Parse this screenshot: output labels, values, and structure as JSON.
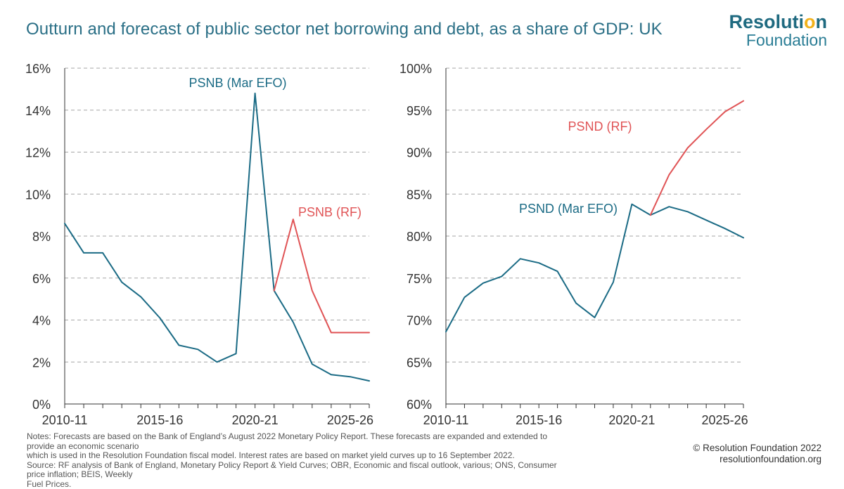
{
  "header": {
    "title": "Outturn and forecast of public sector net borrowing and debt, as a share of GDP: UK"
  },
  "logo": {
    "line1_prefix": "Resoluti",
    "line1_accent": "o",
    "line1_suffix": "n",
    "line2": "Foundation",
    "accent_color": "#f2b21c"
  },
  "footer": {
    "notes_line1": "Notes: Forecasts are based on the Bank of England’s August 2022 Monetary Policy Report. These forecasts are expanded and extended to provide an economic scenario",
    "notes_line2": "which is used in the Resolution Foundation fiscal model. Interest rates are based on market yield curves up to 16 September 2022.",
    "source_line1": "Source: RF analysis of Bank of England, Monetary Policy Report & Yield Curves; OBR, Economic and fiscal outlook, various; ONS, Consumer price inflation; BEIS, Weekly",
    "source_line2": "Fuel Prices.",
    "copyright": "© Resolution Foundation 2022",
    "website": "resolutionfoundation.org"
  },
  "colors": {
    "mar_efo": "#1b6b85",
    "rf": "#e05456",
    "grid": "#a6a6a6",
    "axis": "#333333"
  },
  "chart_data": [
    {
      "type": "line",
      "x": [
        "2010-11",
        "2011-12",
        "2012-13",
        "2013-14",
        "2014-15",
        "2015-16",
        "2016-17",
        "2017-18",
        "2018-19",
        "2019-20",
        "2020-21",
        "2021-22",
        "2022-23",
        "2023-24",
        "2024-25",
        "2025-26",
        "2026-27"
      ],
      "x_tick_labels": [
        "2010-11",
        "2015-16",
        "2020-21",
        "2025-26"
      ],
      "y_tick_labels": [
        "0%",
        "2%",
        "4%",
        "6%",
        "8%",
        "10%",
        "12%",
        "14%",
        "16%"
      ],
      "ylim": [
        0,
        16
      ],
      "y_step": 2,
      "grid": true,
      "series": [
        {
          "name": "PSNB (Mar EFO)",
          "color": "#1b6b85",
          "values": [
            8.6,
            7.2,
            7.2,
            5.8,
            5.1,
            4.1,
            2.8,
            2.6,
            2.0,
            2.4,
            14.8,
            5.4,
            3.9,
            1.9,
            1.4,
            1.3,
            1.1
          ]
        },
        {
          "name": "PSNB (RF)",
          "color": "#e05456",
          "values": [
            null,
            null,
            null,
            null,
            null,
            null,
            null,
            null,
            null,
            null,
            null,
            5.4,
            8.8,
            5.4,
            3.4,
            3.4,
            3.4
          ]
        }
      ]
    },
    {
      "type": "line",
      "x": [
        "2010-11",
        "2011-12",
        "2012-13",
        "2013-14",
        "2014-15",
        "2015-16",
        "2016-17",
        "2017-18",
        "2018-19",
        "2019-20",
        "2020-21",
        "2021-22",
        "2022-23",
        "2023-24",
        "2024-25",
        "2025-26",
        "2026-27"
      ],
      "x_tick_labels": [
        "2010-11",
        "2015-16",
        "2020-21",
        "2025-26"
      ],
      "y_tick_labels": [
        "60%",
        "65%",
        "70%",
        "75%",
        "80%",
        "85%",
        "90%",
        "95%",
        "100%"
      ],
      "ylim": [
        60,
        100
      ],
      "y_step": 5,
      "grid": true,
      "series": [
        {
          "name": "PSND (Mar EFO)",
          "color": "#1b6b85",
          "values": [
            68.6,
            72.7,
            74.4,
            75.2,
            77.3,
            76.8,
            75.8,
            72.0,
            70.3,
            74.5,
            83.8,
            82.5,
            83.5,
            82.9,
            81.9,
            80.9,
            79.8
          ]
        },
        {
          "name": "PSND (RF)",
          "color": "#e05456",
          "values": [
            null,
            null,
            null,
            null,
            null,
            null,
            null,
            null,
            null,
            null,
            null,
            82.5,
            87.3,
            90.5,
            92.7,
            94.8,
            96.1
          ]
        }
      ]
    }
  ]
}
